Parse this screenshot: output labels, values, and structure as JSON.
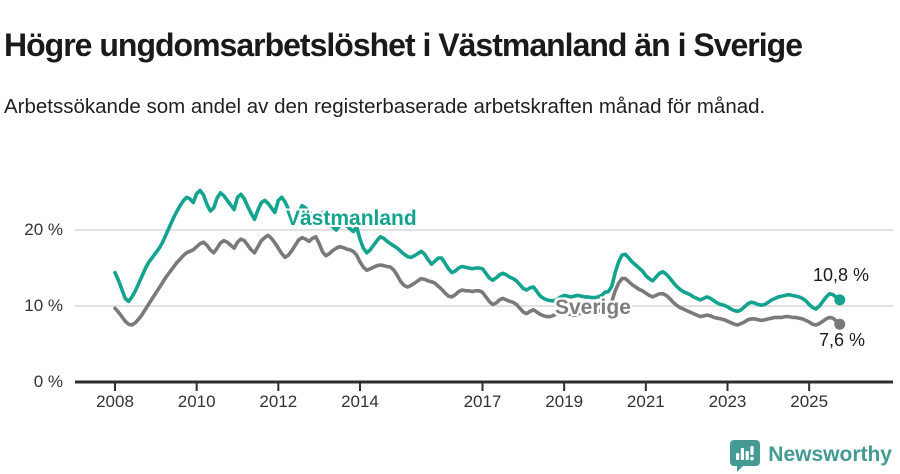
{
  "header": {
    "title": "Högre ungdomsarbetslöshet i Västmanland än i Sverige",
    "subtitle": "Arbetssökande som andel av den registerbaserade arbetskraften månad för månad."
  },
  "chart_data": {
    "type": "line",
    "title": "Högre ungdomsarbetslöshet i Västmanland än i Sverige",
    "subtitle": "Arbetssökande som andel av den registerbaserade arbetskraften månad för månad.",
    "x_start": "2008-01",
    "x_end": "2025-10",
    "frequency": "monthly",
    "unit": "%",
    "grid": "horizontal",
    "legend": "inline-labels",
    "y_axis": {
      "ticks": [
        0,
        10,
        20
      ],
      "tick_labels": [
        "0 %",
        "10 %",
        "20 %"
      ],
      "range": [
        0,
        26
      ]
    },
    "x_axis": {
      "tick_years": [
        2008,
        2010,
        2012,
        2014,
        2017,
        2019,
        2021,
        2023,
        2025
      ]
    },
    "series": [
      {
        "name": "Västmanland",
        "color": "#13a38e",
        "end_label": "10,8 %",
        "end_value": 10.8,
        "values": [
          14.4,
          13.4,
          12.2,
          11.0,
          10.6,
          11.2,
          12.0,
          13.0,
          14.0,
          15.0,
          15.8,
          16.4,
          17.0,
          17.6,
          18.4,
          19.4,
          20.4,
          21.4,
          22.3,
          23.1,
          23.8,
          24.3,
          24.1,
          23.6,
          24.8,
          25.2,
          24.6,
          23.4,
          22.5,
          22.9,
          24.2,
          24.9,
          24.5,
          23.9,
          23.3,
          22.7,
          24.3,
          24.7,
          24.1,
          23.1,
          22.2,
          21.4,
          22.6,
          23.6,
          23.9,
          23.5,
          22.9,
          22.3,
          23.9,
          24.3,
          23.7,
          22.7,
          21.8,
          21.2,
          22.4,
          23.2,
          22.9,
          22.4,
          21.9,
          21.5,
          22.0,
          22.3,
          21.8,
          21.0,
          20.4,
          20.0,
          20.6,
          21.0,
          20.6,
          20.2,
          19.8,
          20.4,
          18.8,
          17.6,
          17.0,
          17.4,
          18.0,
          18.6,
          19.1,
          18.9,
          18.5,
          18.2,
          17.9,
          17.6,
          17.2,
          16.8,
          16.5,
          16.4,
          16.6,
          16.9,
          17.2,
          16.8,
          16.1,
          15.5,
          15.9,
          16.3,
          16.3,
          15.6,
          14.9,
          14.4,
          14.6,
          15.0,
          15.2,
          15.1,
          15.0,
          14.9,
          15.0,
          15.0,
          14.9,
          14.3,
          13.7,
          13.4,
          13.7,
          14.1,
          14.3,
          14.1,
          13.8,
          13.6,
          13.3,
          12.8,
          12.3,
          12.1,
          12.4,
          12.5,
          11.9,
          11.3,
          11.0,
          10.8,
          10.7,
          10.7,
          10.9,
          11.2,
          11.4,
          11.3,
          11.2,
          11.3,
          11.4,
          11.3,
          11.2,
          11.2,
          11.1,
          11.1,
          11.2,
          11.4,
          11.8,
          11.9,
          12.6,
          14.4,
          15.8,
          16.7,
          16.8,
          16.3,
          15.8,
          15.4,
          15.0,
          14.6,
          14.0,
          13.6,
          13.3,
          13.8,
          14.3,
          14.5,
          14.2,
          13.7,
          13.1,
          12.6,
          12.2,
          11.9,
          11.7,
          11.5,
          11.2,
          11.0,
          10.8,
          11.0,
          11.2,
          11.0,
          10.7,
          10.4,
          10.2,
          10.1,
          9.9,
          9.6,
          9.4,
          9.3,
          9.5,
          9.9,
          10.3,
          10.5,
          10.4,
          10.2,
          10.1,
          10.2,
          10.5,
          10.8,
          11.0,
          11.2,
          11.3,
          11.4,
          11.5,
          11.4,
          11.3,
          11.2,
          11.0,
          10.7,
          10.2,
          9.8,
          9.6,
          10.0,
          10.6,
          11.2,
          11.6,
          11.5,
          11.1,
          10.8
        ]
      },
      {
        "name": "Sverige",
        "color": "#7a7a7a",
        "end_label": "7,6 %",
        "end_value": 7.6,
        "values": [
          9.7,
          9.2,
          8.6,
          8.0,
          7.6,
          7.5,
          7.8,
          8.3,
          8.9,
          9.6,
          10.3,
          11.0,
          11.7,
          12.4,
          13.1,
          13.8,
          14.4,
          15.0,
          15.6,
          16.1,
          16.6,
          17.0,
          17.2,
          17.4,
          17.8,
          18.2,
          18.4,
          18.0,
          17.4,
          17.0,
          17.6,
          18.3,
          18.6,
          18.4,
          18.0,
          17.6,
          18.4,
          18.8,
          18.6,
          18.0,
          17.4,
          17.0,
          17.8,
          18.6,
          19.0,
          19.3,
          18.9,
          18.3,
          17.6,
          16.9,
          16.4,
          16.7,
          17.3,
          18.0,
          18.7,
          19.0,
          18.8,
          18.5,
          18.9,
          19.1,
          18.2,
          17.1,
          16.6,
          16.9,
          17.3,
          17.6,
          17.8,
          17.7,
          17.5,
          17.4,
          17.2,
          16.7,
          15.8,
          15.1,
          14.7,
          14.9,
          15.1,
          15.3,
          15.4,
          15.3,
          15.2,
          15.1,
          14.7,
          14.0,
          13.2,
          12.7,
          12.5,
          12.7,
          13.0,
          13.3,
          13.6,
          13.5,
          13.3,
          13.2,
          13.0,
          12.6,
          12.2,
          11.7,
          11.3,
          11.2,
          11.5,
          11.9,
          12.1,
          12.0,
          12.0,
          11.9,
          12.0,
          12.0,
          11.8,
          11.2,
          10.6,
          10.2,
          10.4,
          10.8,
          11.0,
          10.8,
          10.6,
          10.5,
          10.2,
          9.7,
          9.2,
          9.0,
          9.3,
          9.5,
          9.2,
          8.9,
          8.7,
          8.6,
          8.6,
          8.8,
          9.0,
          9.1,
          9.2,
          9.0,
          8.9,
          8.8,
          8.9,
          9.1,
          9.3,
          9.4,
          9.3,
          9.2,
          9.3,
          9.5,
          9.8,
          9.9,
          10.6,
          12.0,
          13.0,
          13.6,
          13.6,
          13.2,
          12.8,
          12.5,
          12.2,
          12.0,
          11.7,
          11.4,
          11.2,
          11.4,
          11.6,
          11.6,
          11.4,
          11.0,
          10.5,
          10.1,
          9.8,
          9.6,
          9.4,
          9.2,
          9.0,
          8.8,
          8.6,
          8.7,
          8.8,
          8.7,
          8.5,
          8.4,
          8.3,
          8.2,
          8.0,
          7.8,
          7.6,
          7.5,
          7.7,
          7.9,
          8.2,
          8.3,
          8.3,
          8.2,
          8.1,
          8.2,
          8.3,
          8.4,
          8.5,
          8.5,
          8.5,
          8.6,
          8.6,
          8.5,
          8.5,
          8.4,
          8.3,
          8.1,
          7.9,
          7.6,
          7.5,
          7.7,
          8.0,
          8.3,
          8.5,
          8.4,
          8.0,
          7.6
        ]
      }
    ]
  },
  "colors": {
    "vastmanland": "#13a38e",
    "sverige": "#7a7a7a",
    "gridline": "#d9d9d9",
    "axis": "#2d2d2d",
    "brand_teal": "#459a93"
  },
  "footer": {
    "brand": "Newsworthy"
  }
}
